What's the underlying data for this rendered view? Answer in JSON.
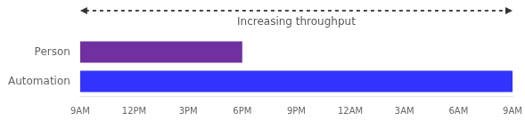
{
  "chart_data": {
    "type": "bar",
    "orientation": "horizontal",
    "categories": [
      "Person",
      "Automation"
    ],
    "values": [
      9,
      24
    ],
    "colors": [
      "#7030A0",
      "#3333FF"
    ],
    "xlim": [
      0,
      24
    ],
    "xticks": [
      {
        "value": 0,
        "label": "9AM"
      },
      {
        "value": 3,
        "label": "12PM"
      },
      {
        "value": 6,
        "label": "3PM"
      },
      {
        "value": 9,
        "label": "6PM"
      },
      {
        "value": 12,
        "label": "9PM"
      },
      {
        "value": 15,
        "label": "12AM"
      },
      {
        "value": 18,
        "label": "3AM"
      },
      {
        "value": 21,
        "label": "6AM"
      },
      {
        "value": 24,
        "label": "9AM"
      }
    ],
    "grid": false,
    "annotations": [
      {
        "text": "Increasing throughput",
        "arrow_from": 0,
        "arrow_to": 24
      }
    ]
  }
}
